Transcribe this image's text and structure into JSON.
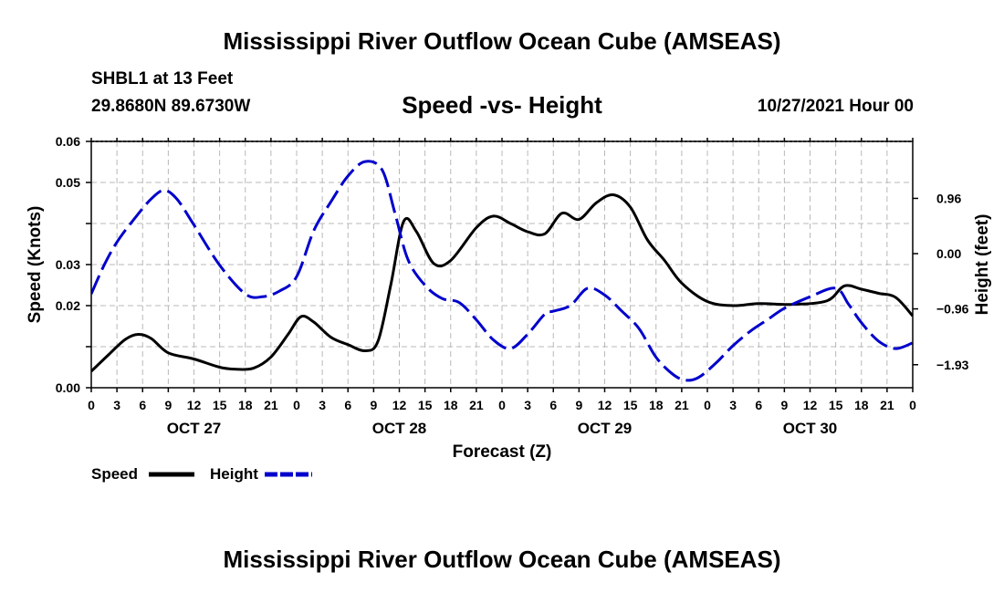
{
  "header": {
    "title": "Mississippi River Outflow Ocean Cube (AMSEAS)",
    "station": "SHBL1 at 13 Feet",
    "coordinates": "29.8680N  89.6730W",
    "subtitle": "Speed -vs- Height",
    "datetime": "10/27/2021 Hour 00"
  },
  "footer": {
    "title": "Mississippi River Outflow Ocean Cube (AMSEAS)"
  },
  "chart_data": {
    "type": "line",
    "xlabel": "Forecast (Z)",
    "ylabel_left": "Speed (Knots)",
    "ylabel_right": "Height (feet)",
    "x_hours": [
      0,
      3,
      6,
      9,
      12,
      15,
      18,
      21,
      24,
      27,
      30,
      33,
      36,
      39,
      42,
      45,
      48,
      51,
      54,
      57,
      60,
      63,
      66,
      69,
      72,
      75,
      78,
      81,
      84,
      87,
      90,
      93,
      96
    ],
    "x_tick_labels": [
      "0",
      "3",
      "6",
      "9",
      "12",
      "15",
      "18",
      "21",
      "0",
      "3",
      "6",
      "9",
      "12",
      "15",
      "18",
      "21",
      "0",
      "3",
      "6",
      "9",
      "12",
      "15",
      "18",
      "21",
      "0",
      "3",
      "6",
      "9",
      "12",
      "15",
      "18",
      "21",
      "0"
    ],
    "day_labels": [
      {
        "label": "OCT 27",
        "hour": 12
      },
      {
        "label": "OCT 28",
        "hour": 36
      },
      {
        "label": "OCT 29",
        "hour": 60
      },
      {
        "label": "OCT 30",
        "hour": 84
      }
    ],
    "left_axis": {
      "range": [
        0,
        0.06
      ],
      "ticks": [
        0,
        0.01,
        0.02,
        0.03,
        0.04,
        0.05,
        0.06
      ],
      "tick_labels": [
        "0.00",
        "0.02",
        "0.03",
        "0.05",
        "0.06"
      ],
      "tick_label_values": [
        0,
        0.02,
        0.03,
        0.05,
        0.06
      ]
    },
    "right_axis": {
      "range": [
        -2.33,
        1.95
      ],
      "ticks": [
        0.96,
        0,
        -0.96,
        -1.93
      ],
      "tick_labels": [
        "0.96",
        "0.00",
        "−0.96",
        "−1.93"
      ]
    },
    "series": [
      {
        "name": "Speed",
        "axis": "left",
        "color": "#000000",
        "dash": "solid",
        "x": [
          0,
          2,
          4,
          5.5,
          7,
          9,
          12,
          15,
          17,
          19,
          21,
          23,
          24.5,
          26,
          28,
          30,
          32,
          33.5,
          35,
          36.5,
          38,
          40,
          42,
          45,
          47,
          49,
          51,
          53,
          55,
          57,
          59,
          61,
          63,
          65,
          67,
          69,
          72,
          75,
          78,
          82,
          86,
          88,
          90,
          92,
          94,
          96
        ],
        "values": [
          0.004,
          0.008,
          0.0118,
          0.013,
          0.012,
          0.0085,
          0.007,
          0.005,
          0.0045,
          0.0048,
          0.0075,
          0.013,
          0.0173,
          0.016,
          0.0123,
          0.0105,
          0.009,
          0.0113,
          0.025,
          0.0405,
          0.038,
          0.0303,
          0.031,
          0.039,
          0.0418,
          0.04,
          0.038,
          0.0375,
          0.0425,
          0.041,
          0.045,
          0.047,
          0.044,
          0.036,
          0.031,
          0.0255,
          0.021,
          0.02,
          0.0205,
          0.0203,
          0.0212,
          0.0248,
          0.024,
          0.023,
          0.022,
          0.0175
        ]
      },
      {
        "name": "Height",
        "axis": "right",
        "color": "#0000cc",
        "dash": "dashed",
        "x": [
          0,
          1.5,
          3,
          5,
          7,
          8.5,
          10,
          12,
          15,
          18,
          20,
          22,
          24,
          26,
          28,
          30,
          32,
          34,
          35.5,
          37,
          39,
          41,
          43,
          45,
          47,
          49,
          51,
          53,
          54,
          56,
          58,
          60,
          62,
          64,
          66,
          68,
          69.5,
          71,
          73,
          75,
          77,
          79,
          81,
          84,
          87,
          88.5,
          90,
          92,
          94,
          96
        ],
        "values": [
          -0.7,
          -0.2,
          0.2,
          0.6,
          0.95,
          1.1,
          0.95,
          0.5,
          -0.2,
          -0.7,
          -0.75,
          -0.65,
          -0.4,
          0.4,
          0.9,
          1.35,
          1.6,
          1.45,
          0.7,
          -0.1,
          -0.55,
          -0.78,
          -0.85,
          -1.15,
          -1.5,
          -1.65,
          -1.4,
          -1.05,
          -1.0,
          -0.9,
          -0.6,
          -0.72,
          -1.0,
          -1.3,
          -1.8,
          -2.1,
          -2.2,
          -2.15,
          -1.9,
          -1.6,
          -1.35,
          -1.15,
          -0.95,
          -0.75,
          -0.6,
          -0.88,
          -1.2,
          -1.52,
          -1.65,
          -1.55
        ]
      }
    ]
  }
}
